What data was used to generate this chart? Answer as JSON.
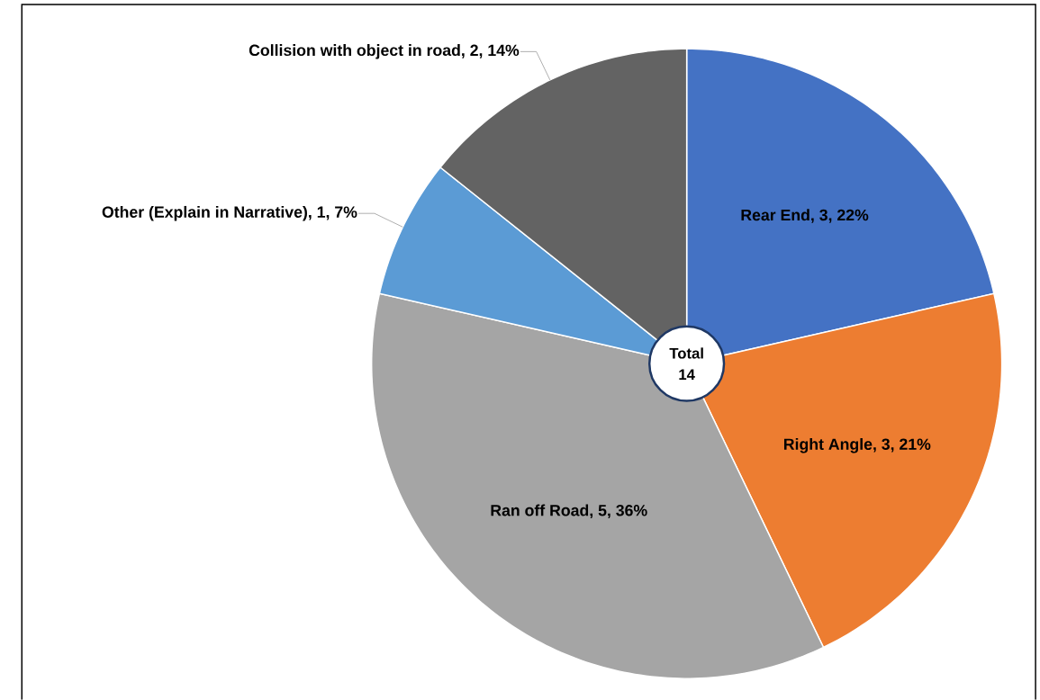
{
  "chart_data": {
    "type": "pie",
    "categories": [
      "Rear End, 3, 22%",
      "Right Angle, 3, 21%",
      "Ran off Road, 5, 36%",
      "Other (Explain in Narrative), 1, 7%",
      "Collision with object in road, 2, 14%"
    ],
    "values": [
      3,
      3,
      5,
      1,
      2
    ],
    "colors": [
      "#4472c4",
      "#ed7d31",
      "#a5a5a5",
      "#5b9bd5",
      "#636363"
    ],
    "annotations": [
      "Total",
      "14"
    ]
  }
}
